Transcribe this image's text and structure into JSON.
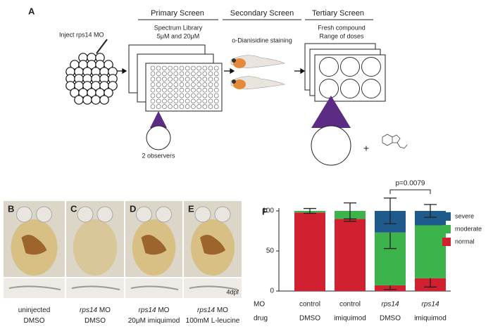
{
  "panel_a": {
    "label": "A",
    "inject": "Inject rps14 MO",
    "primary": {
      "title": "Primary Screen",
      "lines": [
        "Spectrum Library",
        "5μM and 20μM"
      ],
      "observers": "2 observers"
    },
    "secondary": {
      "title": "Secondary Screen",
      "lines": [
        "o-Dianisidine staining"
      ]
    },
    "tertiary": {
      "title": "Tertiary Screen",
      "lines": [
        "Fresh  compound",
        "Range of doses"
      ],
      "plus": "+"
    }
  },
  "photos": [
    {
      "label": "B",
      "caption": [
        {
          "gene": "",
          "rest": "uninjected"
        },
        {
          "gene": "",
          "rest": "DMSO"
        }
      ]
    },
    {
      "label": "C",
      "caption": [
        {
          "gene": "rps14",
          "rest": " MO"
        },
        {
          "gene": "",
          "rest": "DMSO"
        }
      ]
    },
    {
      "label": "D",
      "caption": [
        {
          "gene": "rps14",
          "rest": " MO"
        },
        {
          "gene": "",
          "rest": "20μM imiquimod"
        }
      ]
    },
    {
      "label": "E",
      "caption": [
        {
          "gene": "rps14",
          "rest": " MO"
        },
        {
          "gene": "",
          "rest": "100mM L-leucine"
        }
      ],
      "stage": "4dpf"
    }
  ],
  "chart_data": {
    "type": "stacked_bar",
    "panel_label": "F",
    "row_labels": [
      "MO",
      "drug"
    ],
    "categories": [
      "control",
      "control",
      "rps14",
      "rps14"
    ],
    "categories2": [
      "DMSO",
      "imiquimod",
      "DMSO",
      "imiquimod"
    ],
    "category_italic": [
      false,
      false,
      true,
      true
    ],
    "series": [
      {
        "name": "normal",
        "color": "#d1202f",
        "values": [
          98,
          90,
          7,
          16
        ],
        "errors": [
          null,
          3,
          5,
          11
        ]
      },
      {
        "name": "moderate",
        "color": "#3cb44b",
        "values": [
          2,
          10,
          66,
          66
        ],
        "errors": [
          null,
          null,
          20,
          null
        ]
      },
      {
        "name": "severe",
        "color": "#1f5a8c",
        "values": [
          0,
          0,
          27,
          18
        ],
        "errors": [
          3,
          10,
          16,
          8
        ]
      }
    ],
    "annotation": {
      "text": "p=0.0079",
      "between": [
        2,
        3
      ]
    },
    "ylim": [
      0,
      125
    ],
    "yticks": [
      0,
      50,
      100
    ]
  }
}
